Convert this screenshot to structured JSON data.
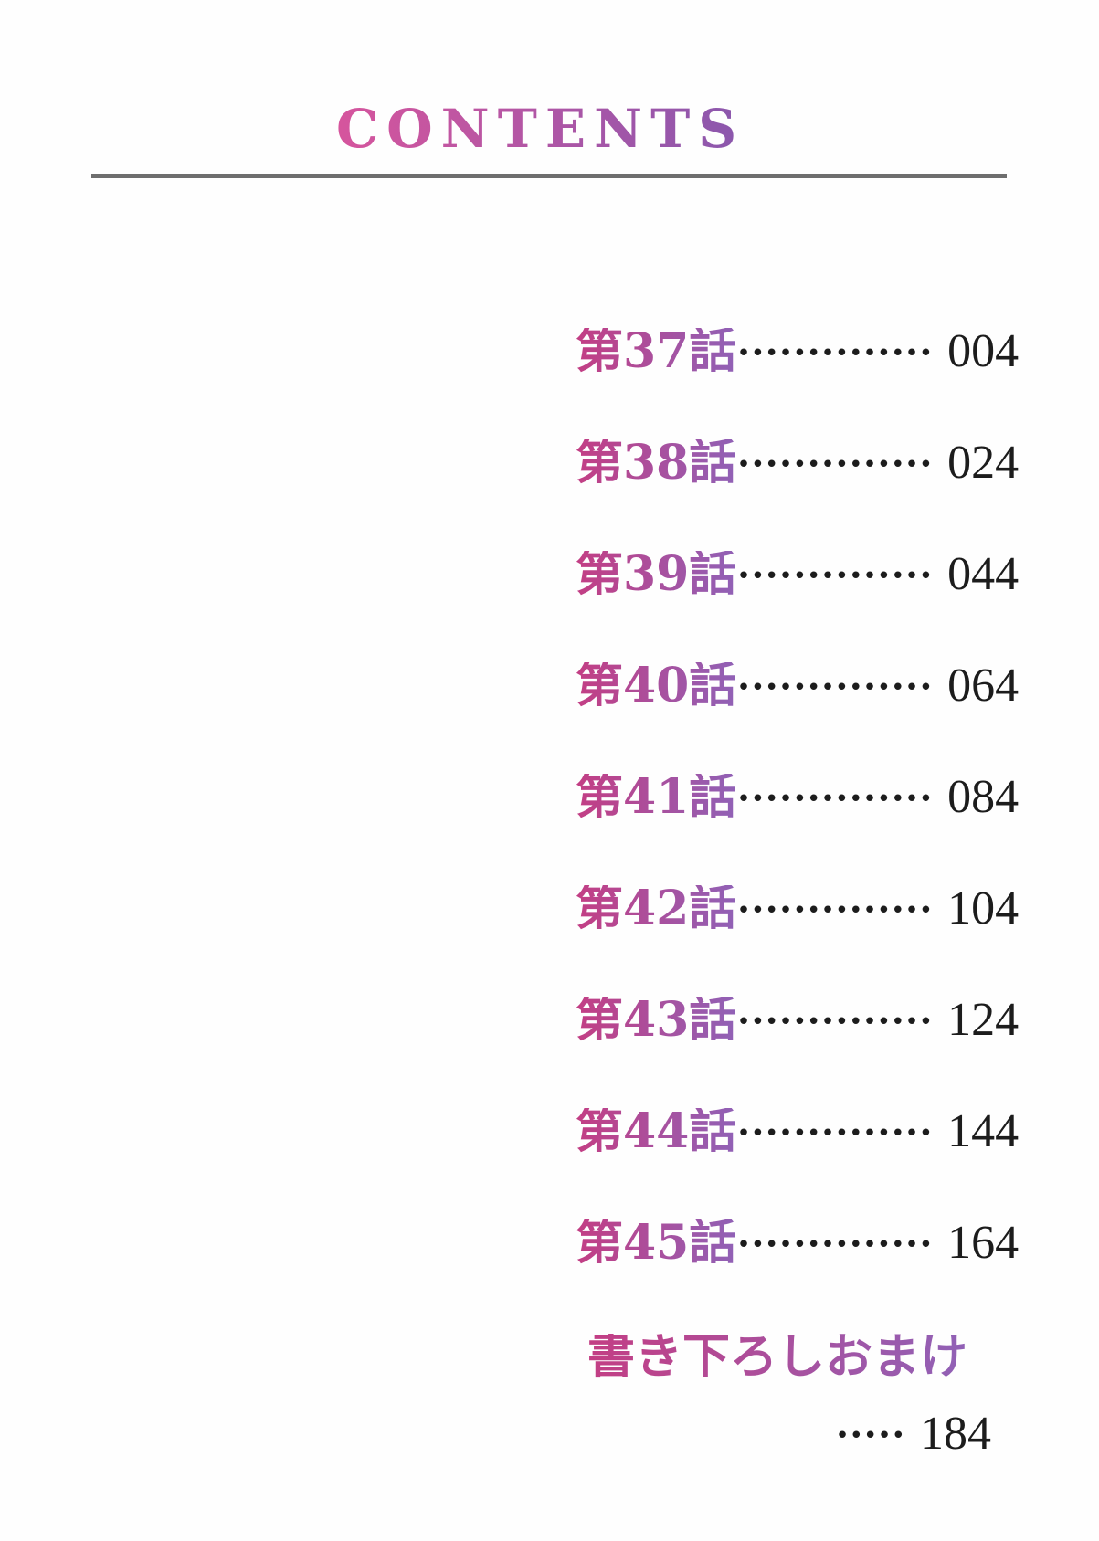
{
  "page": {
    "title": "CONTENTS",
    "background_color": "#fefefe",
    "rule_color": "#6e6e6e",
    "text_color": "#1c1c1c",
    "title_gradient": [
      "#d6559d",
      "#8a57ad"
    ],
    "entry_gradient": [
      "#c33e84",
      "#9061b6"
    ]
  },
  "toc": {
    "entries": [
      {
        "label": "第37話",
        "page": "004",
        "leader_dots": 14
      },
      {
        "label": "第38話",
        "page": "024",
        "leader_dots": 14
      },
      {
        "label": "第39話",
        "page": "044",
        "leader_dots": 14
      },
      {
        "label": "第40話",
        "page": "064",
        "leader_dots": 14
      },
      {
        "label": "第41話",
        "page": "084",
        "leader_dots": 14
      },
      {
        "label": "第42話",
        "page": "104",
        "leader_dots": 14
      },
      {
        "label": "第43話",
        "page": "124",
        "leader_dots": 14
      },
      {
        "label": "第44話",
        "page": "144",
        "leader_dots": 14
      },
      {
        "label": "第45話",
        "page": "164",
        "leader_dots": 14
      }
    ],
    "bonus": {
      "label": "書き下ろしおまけ",
      "page": "184",
      "leader_dots": 5
    }
  }
}
